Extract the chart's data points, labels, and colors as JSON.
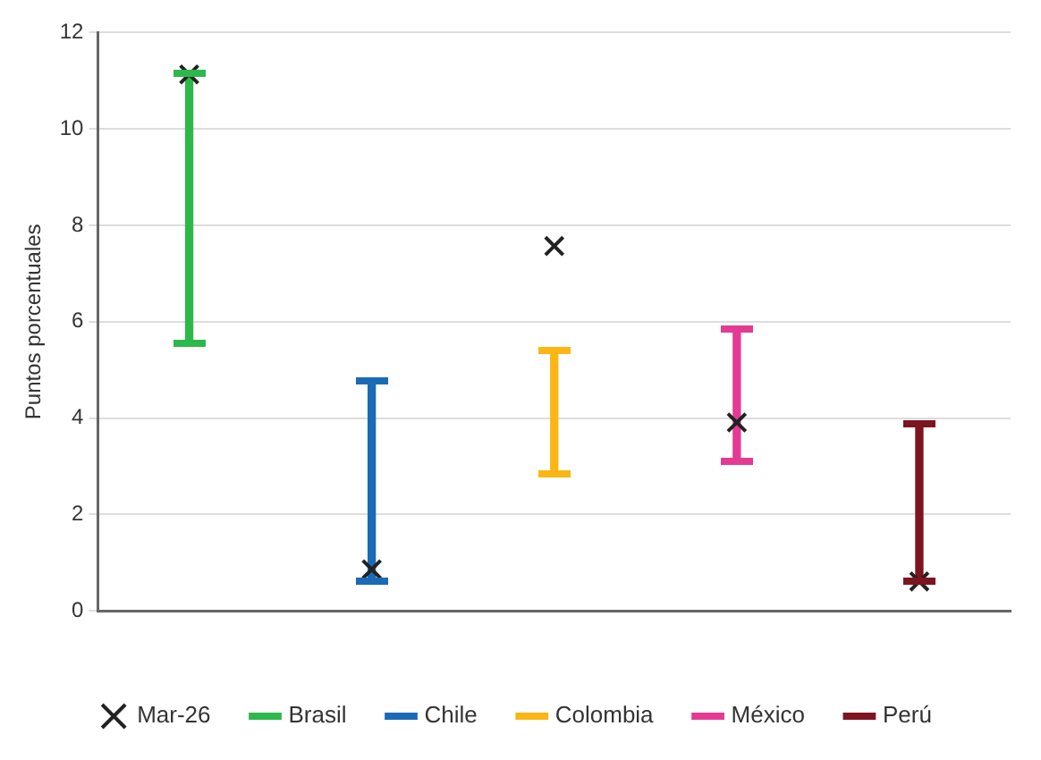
{
  "chart_data": {
    "type": "bar",
    "ylabel": "Puntos porcentuales",
    "categories": [
      null,
      null,
      null,
      null,
      null
    ],
    "series": [
      {
        "name": "Brasil",
        "color": "#2db84b",
        "values": [
          5.6,
          null,
          null,
          null,
          null
        ],
        "base": [
          5.55,
          null,
          null,
          null,
          null
        ]
      },
      {
        "name": "Chile",
        "color": "#1b6ab5",
        "values": [
          null,
          4.18,
          null,
          null,
          null
        ],
        "base": [
          null,
          0.6,
          null,
          null,
          null
        ]
      },
      {
        "name": "Colombia",
        "color": "#fbb614",
        "values": [
          null,
          null,
          2.59,
          null,
          null
        ],
        "base": [
          null,
          null,
          2.83,
          null,
          null
        ]
      },
      {
        "name": "México",
        "color": "#e43a94",
        "values": [
          null,
          null,
          null,
          2.74,
          null
        ],
        "base": [
          null,
          null,
          null,
          3.12,
          null
        ]
      },
      {
        "name": "Perú",
        "color": "#7d1420",
        "values": [
          null,
          null,
          null,
          null,
          3.28
        ],
        "base": [
          null,
          null,
          null,
          null,
          0.61
        ]
      },
      {
        "name": "Mar-26",
        "type": "scatter",
        "color": "#222222",
        "marker": "cross",
        "values": [
          11.13,
          0.86,
          7.57,
          3.91,
          0.61
        ]
      }
    ],
    "ylim": [
      0,
      12
    ],
    "yticks": [
      0,
      2,
      4,
      6,
      8,
      10,
      12
    ],
    "grid": "y",
    "legend": "bottom"
  }
}
